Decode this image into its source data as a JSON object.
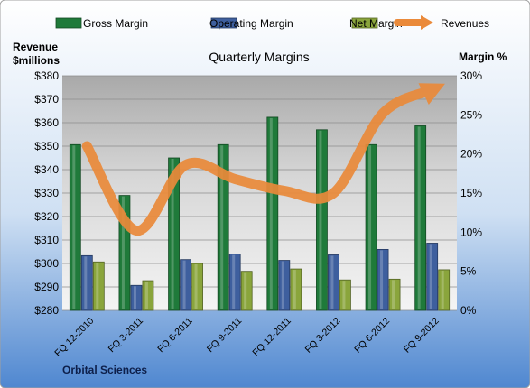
{
  "chart_data": {
    "type": "bar",
    "title": "Quarterly Margins",
    "company": "Orbital Sciences",
    "left_axis_title": [
      "Revenue",
      "$millions"
    ],
    "right_axis_title": "Margin %",
    "categories": [
      "FQ 12-2010",
      "FQ 3-2011",
      "FQ 6-2011",
      "FQ 9-2011",
      "FQ 12-2011",
      "FQ 3-2012",
      "FQ 6-2012",
      "FQ 9-2012"
    ],
    "series": [
      {
        "name": "Gross Margin",
        "axis": "right",
        "kind": "bar",
        "color": "#1f7a3a",
        "values": [
          21.2,
          14.7,
          19.5,
          21.2,
          24.7,
          23.1,
          21.2,
          23.6
        ]
      },
      {
        "name": "Operating Margin",
        "axis": "right",
        "kind": "bar",
        "color": "#3e5f9e",
        "values": [
          7.0,
          3.2,
          6.5,
          7.2,
          6.4,
          7.1,
          7.8,
          8.6
        ]
      },
      {
        "name": "Net Margin",
        "axis": "right",
        "kind": "bar",
        "color": "#8aa53c",
        "values": [
          6.2,
          3.8,
          6.0,
          5.0,
          5.3,
          3.9,
          4.0,
          5.2
        ]
      },
      {
        "name": "Revenues",
        "axis": "left",
        "kind": "line",
        "color": "#ea8a3a",
        "values": [
          350,
          314,
          342,
          336,
          331,
          330,
          364,
          374
        ]
      }
    ],
    "y_left": {
      "min": 280,
      "max": 380,
      "step": 10,
      "tick_labels": [
        "$280",
        "$290",
        "$300",
        "$310",
        "$320",
        "$330",
        "$340",
        "$350",
        "$360",
        "$370",
        "$380"
      ]
    },
    "y_right": {
      "min": 0,
      "max": 30,
      "step": 5,
      "tick_labels": [
        "0%",
        "5%",
        "10%",
        "15%",
        "20%",
        "25%",
        "30%"
      ]
    },
    "grid": true,
    "legend_position": "top"
  }
}
